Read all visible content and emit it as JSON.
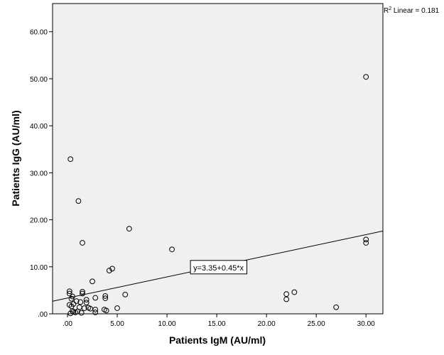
{
  "chart_data": {
    "type": "scatter",
    "xlabel": "Patients IgM (AU/ml)",
    "ylabel": "Patients IgG (AU/ml)",
    "xlim": [
      -1.5,
      31.7
    ],
    "ylim": [
      0,
      66
    ],
    "xticks": [
      0,
      5,
      10,
      15,
      20,
      25,
      30
    ],
    "xtick_labels": [
      ".00",
      "5.00",
      "10.00",
      "15.00",
      "20.00",
      "25.00",
      "30.00"
    ],
    "yticks": [
      0,
      10,
      20,
      30,
      40,
      50,
      60
    ],
    "ytick_labels": [
      ".00",
      "10.00",
      "20.00",
      "30.00",
      "40.00",
      "50.00",
      "60.00"
    ],
    "r2_label": {
      "prefix": "R",
      "sup": "2",
      "suffix": " Linear = 0.181"
    },
    "fit": {
      "intercept": 3.35,
      "slope": 0.45,
      "label": "y=3.35+0.45*x",
      "label_at": [
        12.5,
        10
      ]
    },
    "points": [
      [
        30.0,
        50.4
      ],
      [
        0.3,
        32.9
      ],
      [
        1.1,
        24.0
      ],
      [
        6.2,
        18.1
      ],
      [
        1.5,
        15.1
      ],
      [
        10.5,
        13.7
      ],
      [
        30.0,
        15.1
      ],
      [
        30.0,
        15.8
      ],
      [
        4.5,
        9.6
      ],
      [
        4.2,
        9.2
      ],
      [
        2.5,
        6.9
      ],
      [
        5.8,
        4.1
      ],
      [
        0.2,
        4.8
      ],
      [
        0.2,
        4.3
      ],
      [
        1.5,
        4.7
      ],
      [
        1.5,
        4.3
      ],
      [
        0.5,
        3.7
      ],
      [
        0.4,
        3.2
      ],
      [
        2.8,
        3.4
      ],
      [
        3.8,
        3.8
      ],
      [
        3.8,
        3.3
      ],
      [
        0.9,
        2.7
      ],
      [
        1.3,
        2.5
      ],
      [
        1.9,
        3.0
      ],
      [
        1.9,
        2.4
      ],
      [
        0.6,
        2.1
      ],
      [
        0.2,
        1.9
      ],
      [
        0.4,
        1.6
      ],
      [
        1.2,
        1.4
      ],
      [
        1.7,
        1.2
      ],
      [
        2.1,
        1.3
      ],
      [
        2.3,
        1.1
      ],
      [
        2.8,
        0.9
      ],
      [
        3.7,
        0.9
      ],
      [
        3.9,
        0.7
      ],
      [
        5.0,
        1.2
      ],
      [
        0.5,
        0.6
      ],
      [
        0.6,
        0.4
      ],
      [
        0.8,
        0.3
      ],
      [
        1.0,
        0.5
      ],
      [
        1.4,
        0.2
      ],
      [
        2.8,
        0.3
      ],
      [
        0.3,
        0.1
      ],
      [
        22.0,
        4.2
      ],
      [
        22.0,
        3.1
      ],
      [
        22.8,
        4.6
      ],
      [
        27.0,
        1.4
      ]
    ]
  }
}
